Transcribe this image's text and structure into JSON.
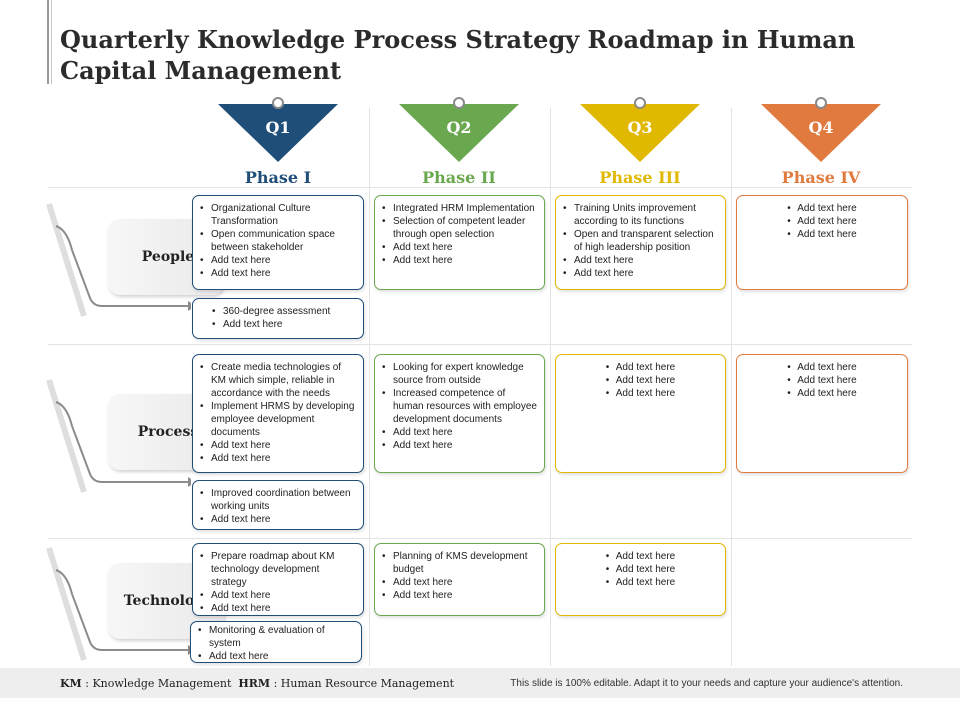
{
  "title": "Quarterly Knowledge Process Strategy Roadmap in Human Capital Management",
  "colors": {
    "q1": "#1f4e79",
    "q2": "#6aa84f",
    "q3": "#e0b800",
    "q4": "#e07a3f"
  },
  "quarters": [
    {
      "label": "Q1",
      "phase": "Phase I"
    },
    {
      "label": "Q2",
      "phase": "Phase II"
    },
    {
      "label": "Q3",
      "phase": "Phase III"
    },
    {
      "label": "Q4",
      "phase": "Phase IV"
    }
  ],
  "rows": [
    {
      "label": "People"
    },
    {
      "label": "Process"
    },
    {
      "label": "Technology"
    }
  ],
  "cells": {
    "people_q1": [
      "Organizational Culture Transformation",
      "Open communication space between stakeholder",
      "Add text here",
      "Add text here"
    ],
    "people_q1_extra": [
      "360-degree assessment",
      "Add text here"
    ],
    "people_q2": [
      "Integrated HRM Implementation",
      "Selection of competent leader through open selection",
      "Add text here",
      "Add text here"
    ],
    "people_q3": [
      "Training Units improvement according to its functions",
      "Open and transparent selection of high leadership position",
      "Add text here",
      "Add text here"
    ],
    "people_q4": [
      "Add text here",
      "Add text here",
      "Add text here"
    ],
    "process_q1": [
      "Create media technologies of KM which simple, reliable in accordance with the needs",
      "Implement HRMS by developing employee development documents",
      "Add text here",
      "Add text here"
    ],
    "process_q1_extra": [
      "Improved coordination between working units",
      "Add text here"
    ],
    "process_q2": [
      "Looking for expert knowledge source from outside",
      "Increased competence of human resources with employee development documents",
      "Add text here",
      "Add text here"
    ],
    "process_q3": [
      "Add text here",
      "Add text here",
      "Add text here"
    ],
    "process_q4": [
      "Add text here",
      "Add text here",
      "Add text here"
    ],
    "technology_q1": [
      "Prepare roadmap about KM technology development strategy",
      "Add text here",
      "Add text here"
    ],
    "technology_q1_extra": [
      "Monitoring & evaluation of system",
      "Add text here"
    ],
    "technology_q2": [
      "Planning of KMS development budget",
      "Add text here",
      "Add text here"
    ],
    "technology_q3": [
      "Add text here",
      "Add text here",
      "Add text here"
    ]
  },
  "footer": {
    "km_abbr": "KM",
    "km_text": ": Knowledge Management",
    "hrm_abbr": "HRM",
    "hrm_text": ": Human Resource Management",
    "note": "This slide is 100% editable. Adapt it to your needs and capture your audience's attention."
  }
}
